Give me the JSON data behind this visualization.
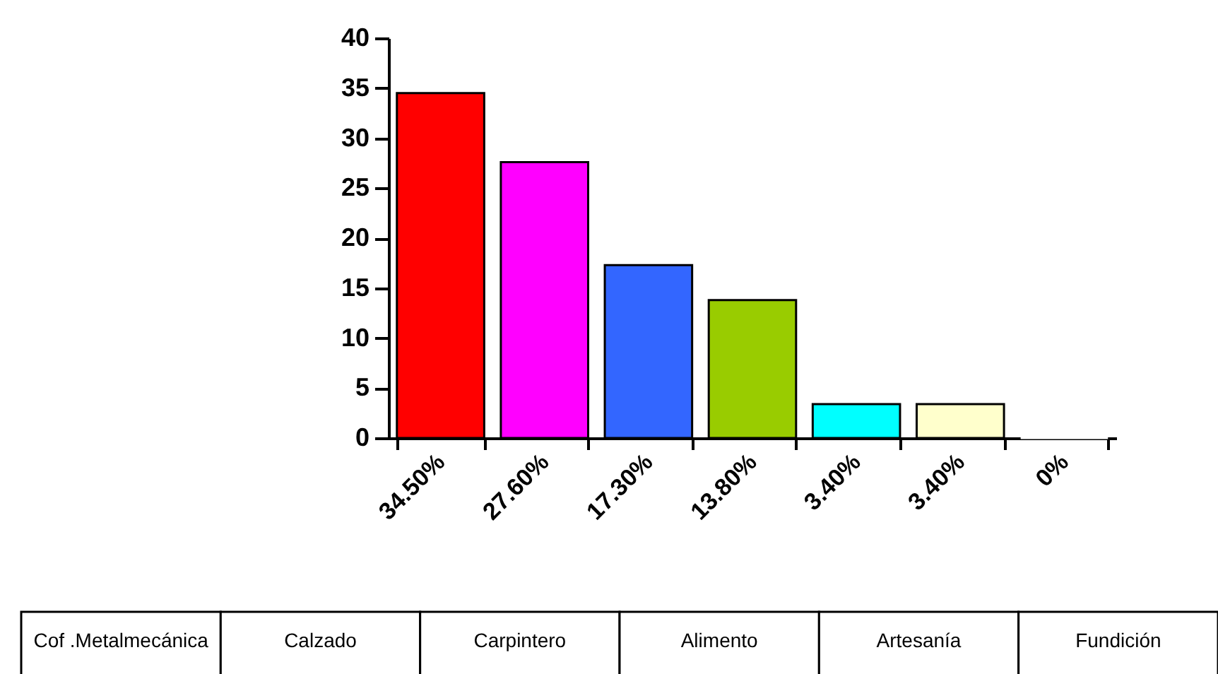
{
  "chart_data": {
    "type": "bar",
    "categories": [
      "34.50%",
      "27.60%",
      "17.30%",
      "13.80%",
      "3.40%",
      "3.40%",
      "0%"
    ],
    "values": [
      34.5,
      27.6,
      17.3,
      13.8,
      3.4,
      3.4,
      0
    ],
    "colors": [
      "#ff0000",
      "#ff00ff",
      "#3366ff",
      "#99cc00",
      "#00ffff",
      "#ffffcc",
      "#ffffff"
    ],
    "ylim": [
      0,
      40
    ],
    "yticks": [
      0,
      5,
      10,
      15,
      20,
      25,
      30,
      35,
      40
    ],
    "grid": false,
    "annotations": [
      "Cof .Metalmecánica",
      "Calzado",
      "Carpintero",
      "Alimento",
      "Artesanía",
      "Fundición"
    ]
  }
}
